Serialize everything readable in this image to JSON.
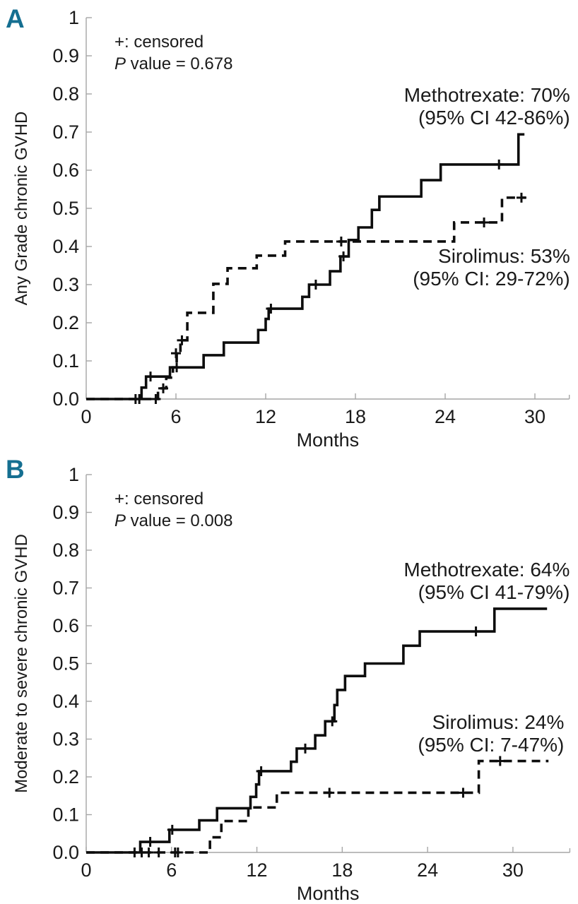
{
  "page": {
    "background": "#ffffff",
    "panel_letter_color": "#156f91"
  },
  "chart_data": [
    {
      "type": "line",
      "subtype": "step-cumulative-incidence",
      "panel_label": "A",
      "ylabel": "Any Grade chronic GVHD",
      "xlabel": "Months",
      "annotations": {
        "censored_note": "+: censored",
        "p_italic": "P",
        "p_rest": "value = 0.678"
      },
      "xlim": [
        0,
        32.3
      ],
      "ylim": [
        0,
        1
      ],
      "xticks": [
        0,
        6,
        12,
        18,
        24,
        30
      ],
      "ytick_values": [
        0,
        0.1,
        0.2,
        0.3,
        0.4,
        0.5,
        0.6,
        0.7,
        0.8,
        0.9,
        1.0
      ],
      "ytick_labels": [
        "0.0",
        "0.1",
        "0.2",
        "0.3",
        "0.4",
        "0.5",
        "0.6",
        "0.7",
        "0.8",
        "0.9",
        "1"
      ],
      "grid": false,
      "legend": "in-plot text labels",
      "series": [
        {
          "name": "Methotrexate",
          "style": "solid",
          "estimate_text": "Methotrexate: 70%",
          "ci_text": "(95% CI 42-86%)",
          "label_anchor": {
            "x": 32.35,
            "y": 0.78,
            "align": "end"
          },
          "points": [
            [
              0,
              0
            ],
            [
              3.7,
              0.03
            ],
            [
              4.0,
              0.059
            ],
            [
              5.6,
              0.083
            ],
            [
              7.85,
              0.115
            ],
            [
              9.2,
              0.148
            ],
            [
              11.5,
              0.181
            ],
            [
              12.0,
              0.21
            ],
            [
              12.2,
              0.237
            ],
            [
              14.45,
              0.268
            ],
            [
              14.9,
              0.3
            ],
            [
              16.3,
              0.335
            ],
            [
              17.0,
              0.374
            ],
            [
              17.55,
              0.417
            ],
            [
              18.2,
              0.45
            ],
            [
              19.1,
              0.496
            ],
            [
              19.6,
              0.531
            ],
            [
              22.4,
              0.574
            ],
            [
              23.7,
              0.615
            ],
            [
              28.9,
              0.694
            ]
          ],
          "end_x": 29.3,
          "censored": [
            [
              3.3,
              0
            ],
            [
              3.55,
              0
            ],
            [
              4.3,
              0.059
            ],
            [
              6.05,
              0.083
            ],
            [
              12.35,
              0.237
            ],
            [
              15.35,
              0.3
            ],
            [
              17.2,
              0.374
            ],
            [
              27.6,
              0.615
            ]
          ]
        },
        {
          "name": "Sirolimus",
          "style": "dashed",
          "estimate_text": "Sirolimus: 53%",
          "ci_text": "(95% CI: 29-72%)",
          "label_anchor": {
            "x": 32.35,
            "y": 0.357,
            "align": "end"
          },
          "points": [
            [
              0,
              0
            ],
            [
              4.8,
              0.028
            ],
            [
              5.35,
              0.056
            ],
            [
              5.8,
              0.083
            ],
            [
              6.05,
              0.12
            ],
            [
              6.3,
              0.154
            ],
            [
              6.76,
              0.226
            ],
            [
              8.5,
              0.302
            ],
            [
              9.45,
              0.343
            ],
            [
              11.4,
              0.376
            ],
            [
              13.3,
              0.413
            ],
            [
              24.6,
              0.463
            ],
            [
              27.8,
              0.528
            ]
          ],
          "end_x": 29.4,
          "censored": [
            [
              4.65,
              0
            ],
            [
              5.15,
              0.028
            ],
            [
              6.0,
              0.12
            ],
            [
              6.4,
              0.154
            ],
            [
              17.05,
              0.413
            ],
            [
              26.6,
              0.463
            ],
            [
              29.1,
              0.528
            ]
          ]
        }
      ]
    },
    {
      "type": "line",
      "subtype": "step-cumulative-incidence",
      "panel_label": "B",
      "ylabel": "Moderate to severe chronic GVHD",
      "xlabel": "Months",
      "annotations": {
        "censored_note": "+: censored",
        "p_italic": "P",
        "p_rest": "value = 0.008"
      },
      "xlim": [
        0,
        34.0
      ],
      "ylim": [
        0,
        1
      ],
      "xticks": [
        0,
        6,
        12,
        18,
        24,
        30
      ],
      "ytick_values": [
        0,
        0.1,
        0.2,
        0.3,
        0.4,
        0.5,
        0.6,
        0.7,
        0.8,
        0.9,
        1.0
      ],
      "ytick_labels": [
        "0.0",
        "0.1",
        "0.2",
        "0.3",
        "0.4",
        "0.5",
        "0.6",
        "0.7",
        "0.8",
        "0.9",
        "1"
      ],
      "grid": false,
      "legend": "in-plot text labels",
      "series": [
        {
          "name": "Methotrexate",
          "style": "solid",
          "estimate_text": "Methotrexate: 64%",
          "ci_text": "(95% CI 41-79%)",
          "label_anchor": {
            "x": 34.0,
            "y": 0.731,
            "align": "end"
          },
          "points": [
            [
              0,
              0
            ],
            [
              3.8,
              0.028
            ],
            [
              5.85,
              0.06
            ],
            [
              7.95,
              0.085
            ],
            [
              9.2,
              0.117
            ],
            [
              11.55,
              0.147
            ],
            [
              11.95,
              0.18
            ],
            [
              12.15,
              0.215
            ],
            [
              14.4,
              0.24
            ],
            [
              14.8,
              0.275
            ],
            [
              16.1,
              0.31
            ],
            [
              16.8,
              0.347
            ],
            [
              17.45,
              0.39
            ],
            [
              17.65,
              0.43
            ],
            [
              18.2,
              0.467
            ],
            [
              19.6,
              0.5
            ],
            [
              22.3,
              0.547
            ],
            [
              23.45,
              0.585
            ],
            [
              28.7,
              0.645
            ]
          ],
          "end_x": 32.4,
          "censored": [
            [
              3.4,
              0
            ],
            [
              4.5,
              0.028
            ],
            [
              6.05,
              0.06
            ],
            [
              12.3,
              0.215
            ],
            [
              15.4,
              0.275
            ],
            [
              17.3,
              0.347
            ],
            [
              27.4,
              0.585
            ]
          ]
        },
        {
          "name": "Sirolimus",
          "style": "dashed",
          "estimate_text": "Sirolimus: 24%",
          "ci_text": "(95% CI: 7-47%)",
          "label_anchor": {
            "x": 33.6,
            "y": 0.327,
            "align": "end"
          },
          "points": [
            [
              0,
              0
            ],
            [
              8.7,
              0.04
            ],
            [
              9.5,
              0.083
            ],
            [
              11.4,
              0.119
            ],
            [
              13.4,
              0.158
            ],
            [
              27.6,
              0.242
            ]
          ],
          "end_x": 32.5,
          "censored": [
            [
              3.9,
              0
            ],
            [
              4.4,
              0
            ],
            [
              5.1,
              0
            ],
            [
              6.25,
              0
            ],
            [
              6.45,
              0
            ],
            [
              17.1,
              0.158
            ],
            [
              26.5,
              0.158
            ],
            [
              29.1,
              0.242
            ]
          ]
        }
      ]
    }
  ]
}
